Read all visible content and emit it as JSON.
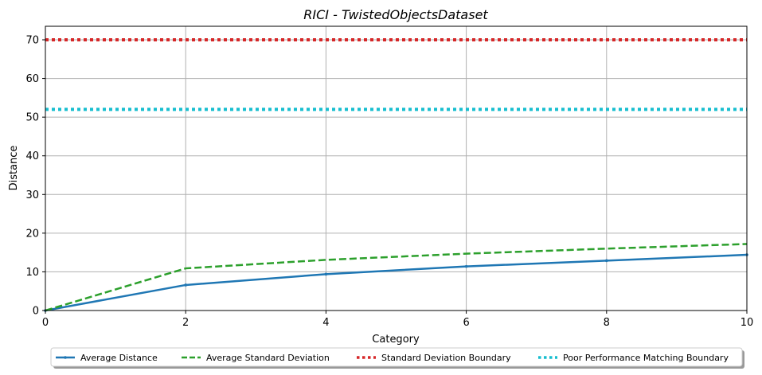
{
  "chart_data": {
    "type": "line",
    "title": "RICI - TwistedObjectsDataset",
    "xlabel": "Category",
    "ylabel": "Distance",
    "xlim": [
      0,
      10
    ],
    "ylim": [
      0,
      73.5
    ],
    "xticks": [
      0,
      2,
      4,
      6,
      8,
      10
    ],
    "yticks": [
      0,
      10,
      20,
      30,
      40,
      50,
      60,
      70
    ],
    "grid": true,
    "legend_position": "bottom-center",
    "series": [
      {
        "name": "Average Distance",
        "color": "#1f77b4",
        "style": "solid-marker",
        "x": [
          0,
          2,
          4,
          6,
          8,
          10
        ],
        "y": [
          0,
          6.6,
          9.4,
          11.4,
          12.9,
          14.4
        ]
      },
      {
        "name": "Average Standard Deviation",
        "color": "#2ca02c",
        "style": "dashed",
        "x": [
          0,
          2,
          4,
          6,
          8,
          10
        ],
        "y": [
          0,
          10.9,
          13.1,
          14.7,
          16.0,
          17.2
        ]
      },
      {
        "name": "Standard Deviation Boundary",
        "color": "#d62728",
        "style": "dotted",
        "x": [
          0,
          10
        ],
        "y": [
          70,
          70
        ]
      },
      {
        "name": "Poor Performance Matching Boundary",
        "color": "#17becf",
        "style": "dotted",
        "x": [
          0,
          10
        ],
        "y": [
          52,
          52
        ]
      }
    ]
  }
}
